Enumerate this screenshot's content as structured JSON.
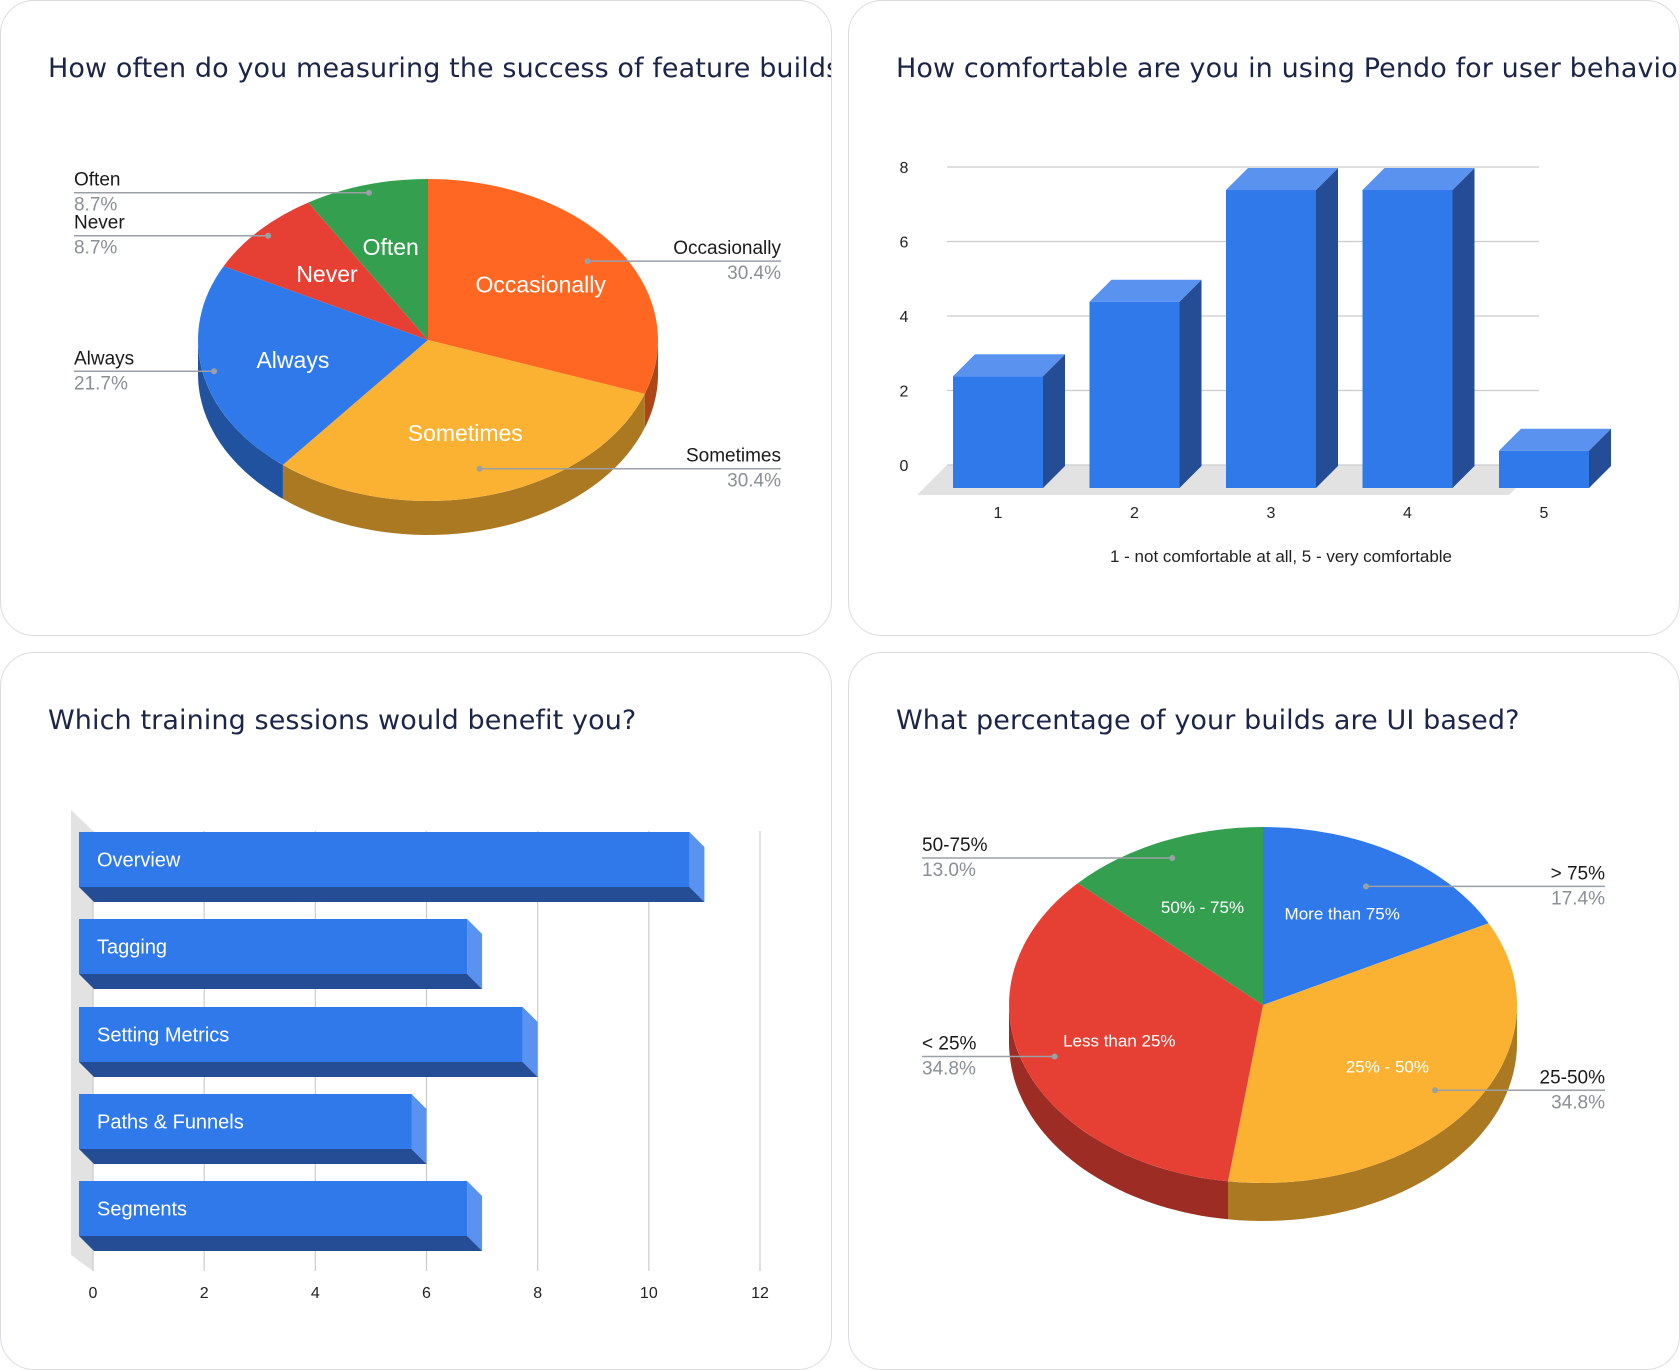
{
  "charts": [
    {
      "title": "How often do you measuring the success of feature builds?"
    },
    {
      "title": "How comfortable are you in using Pendo for user behavior?"
    },
    {
      "title": "Which training sessions would benefit you?"
    },
    {
      "title": "What percentage of your builds are UI based?"
    }
  ],
  "chart_data": [
    {
      "type": "pie",
      "title": "How often do you measuring the success of feature builds?",
      "labels": [
        "Occasionally",
        "Sometimes",
        "Always",
        "Never",
        "Often"
      ],
      "values": [
        30.4,
        30.4,
        21.7,
        8.7,
        8.7
      ],
      "value_labels": [
        "30.4%",
        "30.4%",
        "21.7%",
        "8.7%",
        "8.7%"
      ],
      "colors": [
        "#ff6722",
        "#fbb232",
        "#3079ea",
        "#e64035",
        "#34a04f"
      ],
      "legend": "callouts"
    },
    {
      "type": "bar",
      "title": "How comfortable are you in using Pendo for user behavior?",
      "categories": [
        "1",
        "2",
        "3",
        "4",
        "5"
      ],
      "values": [
        3,
        5,
        8,
        8,
        1
      ],
      "xlabel": "1 - not comfortable at all, 5 - very comfortable",
      "ylabel": "",
      "ylim": [
        0,
        8
      ],
      "yticks": [
        "0",
        "2",
        "4",
        "6",
        "8"
      ],
      "grid": true,
      "color": "#3079ea"
    },
    {
      "type": "bar",
      "orientation": "horizontal",
      "title": "Which training sessions would benefit you?",
      "categories": [
        "Overview",
        "Tagging",
        "Setting Metrics",
        "Paths & Funnels",
        "Segments"
      ],
      "values": [
        11,
        7,
        8,
        6,
        7
      ],
      "xlim": [
        0,
        12
      ],
      "xticks": [
        "0",
        "2",
        "4",
        "6",
        "8",
        "10",
        "12"
      ],
      "grid": true,
      "color": "#3079ea"
    },
    {
      "type": "pie",
      "title": "What percentage of your builds are UI based?",
      "labels": [
        "More than 75%",
        "25% - 50%",
        "Less than 25%",
        "50% - 75%"
      ],
      "legend_labels": [
        "> 75%",
        "25-50%",
        "< 25%",
        "50-75%"
      ],
      "values": [
        17.4,
        34.8,
        34.8,
        13.0
      ],
      "value_labels": [
        "17.4%",
        "34.8%",
        "34.8%",
        "13.0%"
      ],
      "colors": [
        "#3079ea",
        "#fbb232",
        "#e64035",
        "#34a04f"
      ],
      "legend": "callouts"
    }
  ]
}
